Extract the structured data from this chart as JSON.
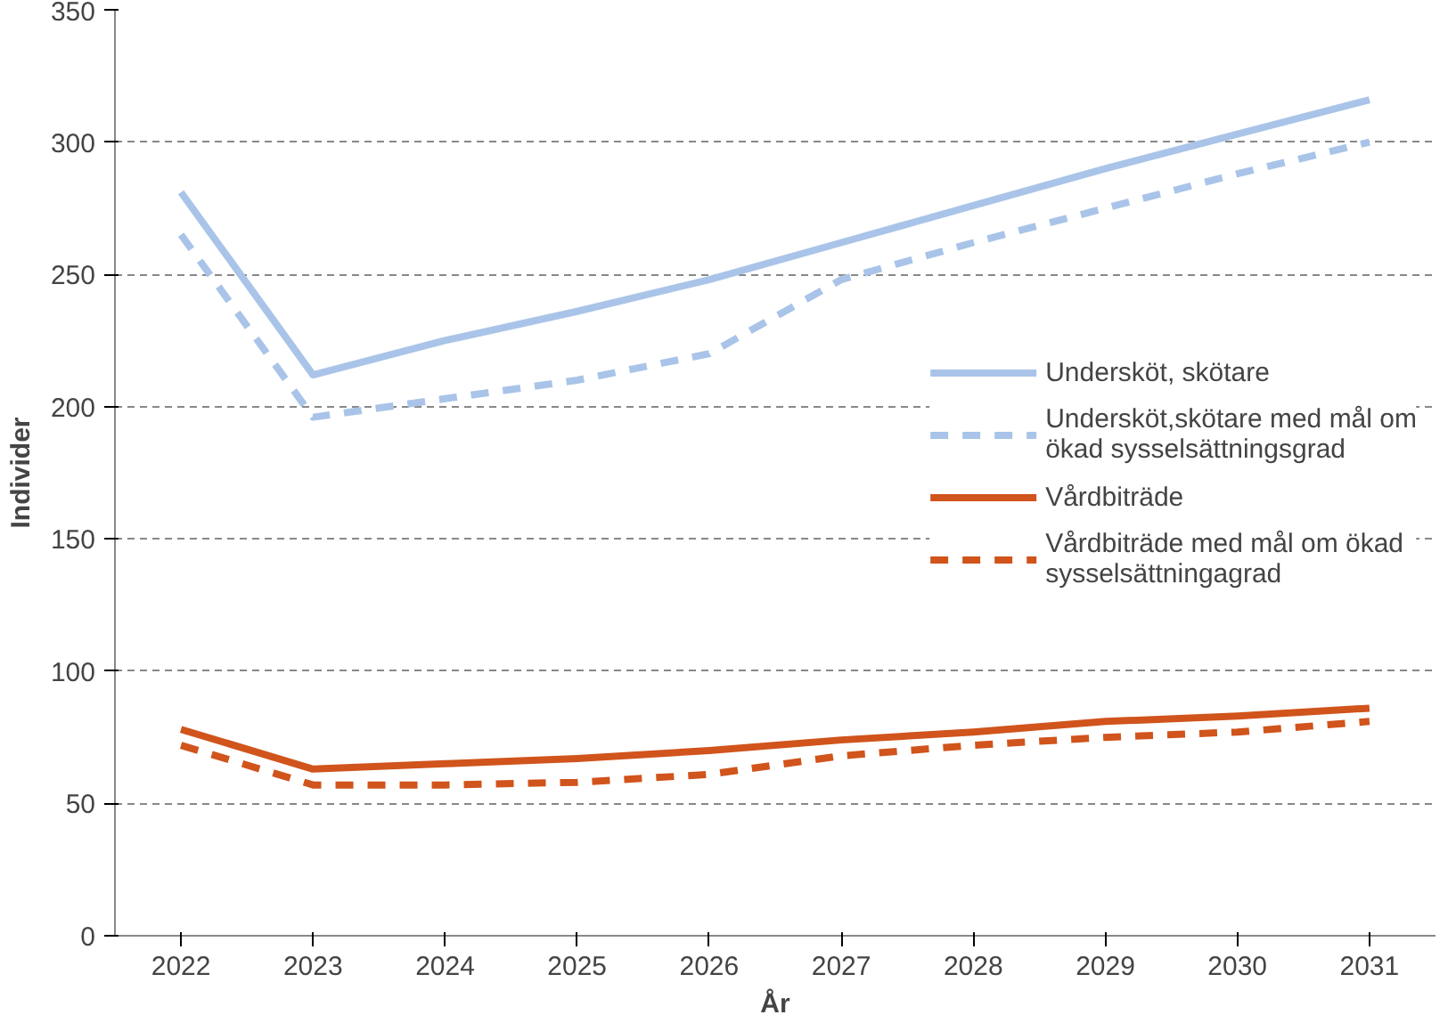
{
  "chart_data": {
    "type": "line",
    "xlabel": "År",
    "ylabel": "Individer",
    "categories": [
      "2022",
      "2023",
      "2024",
      "2025",
      "2026",
      "2027",
      "2028",
      "2029",
      "2030",
      "2031"
    ],
    "series": [
      {
        "name": "Undersköt, skötare",
        "color": "#a9c4e8",
        "line_style": "solid",
        "values": [
          281,
          212,
          225,
          236,
          248,
          262,
          276,
          290,
          303,
          316
        ]
      },
      {
        "name": "Undersköt,skötare med mål om ökad sysselsättningsgrad",
        "color": "#a9c4e8",
        "line_style": "dashed",
        "values": [
          265,
          196,
          203,
          210,
          220,
          248,
          262,
          275,
          288,
          300
        ]
      },
      {
        "name": "Vårdbiträde",
        "color": "#d0541c",
        "line_style": "solid",
        "values": [
          78,
          63,
          65,
          67,
          70,
          74,
          77,
          81,
          83,
          86
        ]
      },
      {
        "name": "Vårdbiträde med mål om ökad sysselsättningagrad",
        "color": "#d0541c",
        "line_style": "dashed",
        "values": [
          72,
          57,
          57,
          58,
          61,
          68,
          72,
          75,
          77,
          81
        ]
      }
    ],
    "ylim": [
      0,
      350
    ],
    "yticks": [
      0,
      50,
      100,
      150,
      200,
      250,
      300,
      350
    ],
    "grid": "y",
    "legend": "right",
    "marker": "none"
  }
}
